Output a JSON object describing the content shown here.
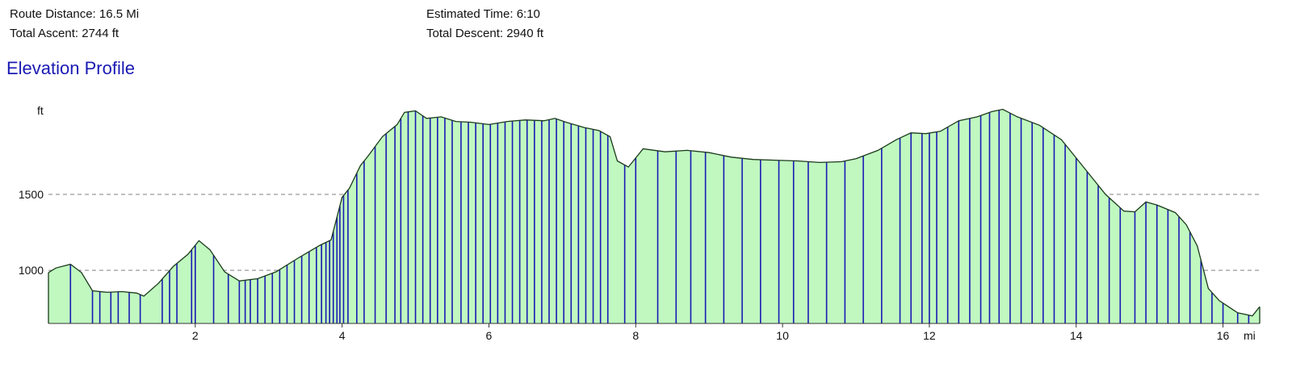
{
  "summary": {
    "route_distance": "Route Distance: 16.5 Mi",
    "total_ascent": "Total Ascent: 2744 ft",
    "estimated_time": "Estimated Time: 6:10",
    "total_descent": "Total Descent: 2940 ft"
  },
  "chart_data": {
    "type": "area",
    "title": "Elevation Profile",
    "xlabel": "mi",
    "ylabel": "ft",
    "xlim": [
      0,
      16.5
    ],
    "ylim": [
      650,
      2100
    ],
    "x_ticks": [
      2,
      4,
      6,
      8,
      10,
      12,
      14,
      16
    ],
    "y_ticks": [
      1000,
      1500
    ],
    "grid": "dashed horizontal at y ticks",
    "colors": {
      "fill": "#c0f8c0",
      "outline": "#1a3a1a",
      "markers": "#1a1ab4",
      "grid": "#808080"
    },
    "profile": {
      "x": [
        0,
        0.1,
        0.3,
        0.45,
        0.6,
        0.8,
        1.0,
        1.2,
        1.3,
        1.5,
        1.7,
        1.9,
        2.05,
        2.2,
        2.4,
        2.6,
        2.85,
        3.1,
        3.4,
        3.7,
        3.85,
        4.0,
        4.1,
        4.25,
        4.35,
        4.55,
        4.75,
        4.85,
        5.0,
        5.15,
        5.35,
        5.55,
        5.75,
        6.0,
        6.25,
        6.5,
        6.75,
        6.9,
        7.05,
        7.3,
        7.5,
        7.65,
        7.75,
        7.9,
        8.1,
        8.4,
        8.7,
        9.0,
        9.3,
        9.6,
        9.9,
        10.2,
        10.5,
        10.8,
        11.0,
        11.3,
        11.55,
        11.75,
        11.95,
        12.15,
        12.4,
        12.65,
        12.85,
        13.0,
        13.2,
        13.5,
        13.8,
        14.1,
        14.4,
        14.65,
        14.8,
        14.95,
        15.1,
        15.35,
        15.5,
        15.65,
        15.8,
        15.95,
        16.2,
        16.4,
        16.5
      ],
      "y": [
        985,
        1015,
        1040,
        985,
        865,
        855,
        860,
        850,
        830,
        915,
        1025,
        1105,
        1195,
        1135,
        990,
        930,
        945,
        990,
        1080,
        1165,
        1200,
        1480,
        1540,
        1690,
        1750,
        1880,
        1960,
        2040,
        2050,
        2000,
        2010,
        1980,
        1975,
        1960,
        1980,
        1990,
        1985,
        2000,
        1975,
        1940,
        1920,
        1880,
        1720,
        1680,
        1800,
        1780,
        1790,
        1775,
        1745,
        1730,
        1725,
        1720,
        1710,
        1715,
        1735,
        1790,
        1860,
        1905,
        1900,
        1915,
        1985,
        2010,
        2045,
        2060,
        2010,
        1955,
        1860,
        1680,
        1500,
        1390,
        1385,
        1450,
        1430,
        1380,
        1300,
        1160,
        880,
        800,
        720,
        700,
        760
      ]
    },
    "marker_x": [
      0.3,
      0.6,
      0.7,
      0.85,
      0.95,
      1.1,
      1.25,
      1.55,
      1.65,
      1.75,
      1.95,
      2.0,
      2.25,
      2.45,
      2.6,
      2.68,
      2.75,
      2.85,
      2.95,
      3.05,
      3.15,
      3.25,
      3.35,
      3.45,
      3.55,
      3.65,
      3.72,
      3.78,
      3.83,
      3.88,
      3.93,
      3.97,
      4.02,
      4.08,
      4.2,
      4.3,
      4.45,
      4.6,
      4.72,
      4.8,
      4.9,
      5.0,
      5.1,
      5.2,
      5.3,
      5.4,
      5.5,
      5.62,
      5.72,
      5.82,
      5.92,
      6.02,
      6.12,
      6.22,
      6.32,
      6.42,
      6.52,
      6.62,
      6.72,
      6.82,
      6.92,
      7.02,
      7.12,
      7.22,
      7.32,
      7.42,
      7.52,
      7.62,
      7.85,
      8.0,
      8.3,
      8.55,
      8.75,
      8.95,
      9.2,
      9.45,
      9.7,
      9.95,
      10.15,
      10.35,
      10.6,
      10.85,
      11.1,
      11.35,
      11.6,
      11.75,
      11.9,
      12.0,
      12.1,
      12.25,
      12.4,
      12.55,
      12.7,
      12.82,
      12.95,
      13.1,
      13.25,
      13.4,
      13.55,
      13.7,
      13.85,
      14.0,
      14.15,
      14.3,
      14.45,
      14.6,
      14.8,
      14.95,
      15.1,
      15.25,
      15.4,
      15.55,
      15.7,
      15.85,
      16.0,
      16.2,
      16.35
    ]
  }
}
